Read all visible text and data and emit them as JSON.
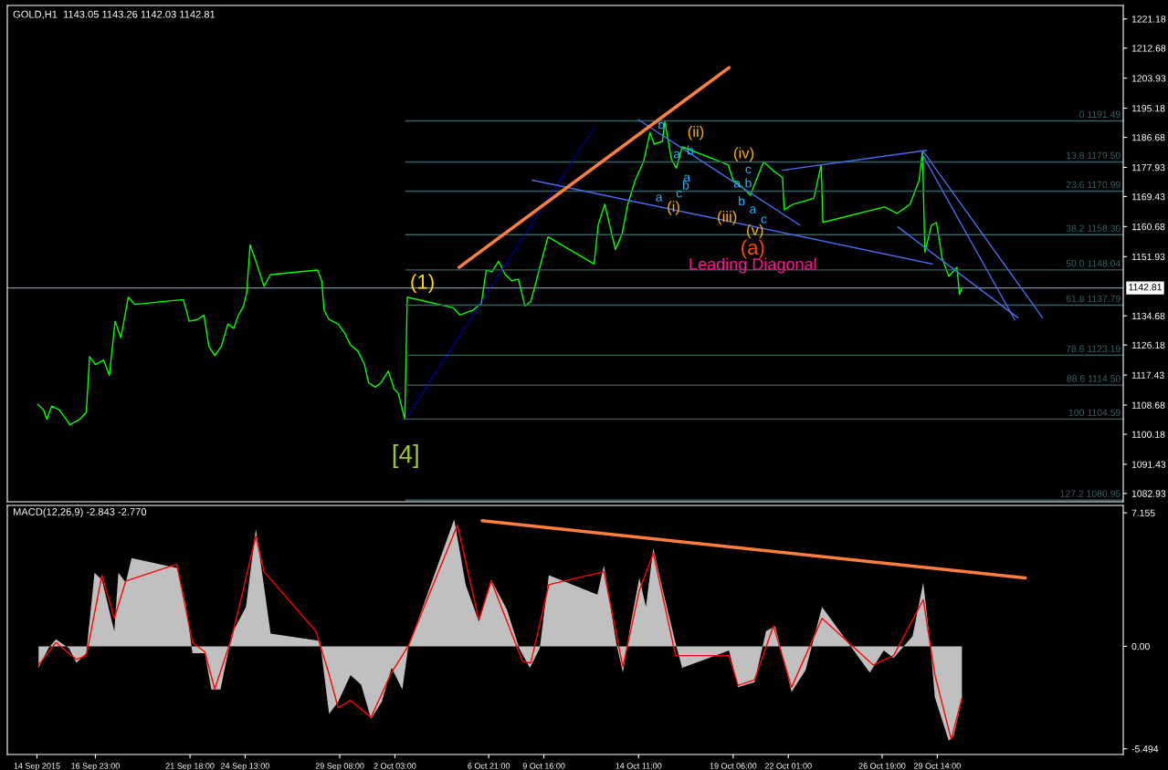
{
  "chart_data": [
    {
      "type": "line",
      "title": "GOLD,H1  1143.05 1143.26 1142.03 1142.81",
      "xlim": [
        "2015-09-12T12:00",
        "2015-11-08T00:00"
      ],
      "ylim": [
        1080.5,
        1225.1
      ],
      "tick_labels": "y",
      "grid": false,
      "legend": false,
      "yticks": [
        1082.93,
        1091.43,
        1100.18,
        1108.68,
        1117.43,
        1126.18,
        1134.68,
        1151.93,
        1160.68,
        1169.43,
        1177.93,
        1186.68,
        1195.18,
        1203.93,
        1212.68,
        1221.18
      ],
      "ref_lines": [
        {
          "axis": "y",
          "value": 1142.81,
          "label": "1142.81",
          "color": "#7f8fa6"
        }
      ],
      "series": [
        {
          "color": "#00ff00",
          "x": [
            "2015-09-14T01:00",
            "2015-09-14T08:00",
            "2015-09-14T12:00",
            "2015-09-14T18:00",
            "2015-09-15T03:00",
            "2015-09-15T11:00",
            "2015-09-15T16:00",
            "2015-09-16T04:00",
            "2015-09-16T12:00",
            "2015-09-16T16:00",
            "2015-09-16T23:00",
            "2015-09-17T09:00",
            "2015-09-17T16:00",
            "2015-09-17T23:00",
            "2015-09-18T06:00",
            "2015-09-18T15:00",
            "2015-09-18T23:00",
            "2015-09-21T10:00",
            "2015-09-21T17:00",
            "2015-09-22T03:00",
            "2015-09-22T11:00",
            "2015-09-22T17:00",
            "2015-09-23T00:00",
            "2015-09-23T08:00",
            "2015-09-23T16:00",
            "2015-09-23T23:00",
            "2015-09-24T05:00",
            "2015-09-24T11:00",
            "2015-09-24T15:00",
            "2015-09-24T19:00",
            "2015-09-25T02:00",
            "2015-09-25T12:00",
            "2015-09-25T20:00",
            "2015-09-28T05:00",
            "2015-09-28T10:00",
            "2015-09-28T13:00",
            "2015-09-28T19:00",
            "2015-09-29T06:00",
            "2015-09-29T14:00",
            "2015-09-29T21:00",
            "2015-09-30T06:00",
            "2015-09-30T14:00",
            "2015-09-30T19:00",
            "2015-10-01T03:00",
            "2015-10-01T10:00",
            "2015-10-01T19:00",
            "2015-10-02T02:00",
            "2015-10-02T07:00",
            "2015-10-02T15:00",
            "2015-10-02T18:00",
            "2015-10-05T02:00",
            "2015-10-05T10:00",
            "2015-10-05T18:00",
            "2015-10-06T01:00",
            "2015-10-06T12:00",
            "2015-10-06T18:00",
            "2015-10-07T01:00",
            "2015-10-07T09:00",
            "2015-10-07T17:00",
            "2015-10-08T01:00",
            "2015-10-08T09:00",
            "2015-10-08T17:00",
            "2015-10-09T00:00",
            "2015-10-09T06:00",
            "2015-10-09T13:00",
            "2015-10-09T19:00",
            "2015-10-09T21:00",
            "2015-10-12T05:00",
            "2015-10-12T10:00",
            "2015-10-12T18:00",
            "2015-10-13T07:00",
            "2015-10-13T15:00",
            "2015-10-13T22:00",
            "2015-10-14T07:00",
            "2015-10-14T17:00",
            "2015-10-15T01:00",
            "2015-10-15T06:00",
            "2015-10-15T16:00",
            "2015-10-15T19:00",
            "2015-10-16T03:00",
            "2015-10-16T09:00",
            "2015-10-16T16:00",
            "2015-10-19T00:00",
            "2015-10-19T06:00",
            "2015-10-19T16:00",
            "2015-10-20T03:00",
            "2015-10-20T10:00",
            "2015-10-20T19:00",
            "2015-10-21T07:00",
            "2015-10-21T18:00",
            "2015-10-21T20:00",
            "2015-10-22T07:00",
            "2015-10-22T22:00",
            "2015-10-23T08:00",
            "2015-10-23T17:00",
            "2015-10-23T19:00",
            "2015-10-26T08:00",
            "2015-10-26T22:00",
            "2015-10-27T13:00",
            "2015-10-28T05:00",
            "2015-10-28T16:00",
            "2015-10-28T20:00",
            "2015-10-28T23:00",
            "2015-10-29T07:00",
            "2015-10-29T13:00",
            "2015-10-29T20:00",
            "2015-10-30T04:00",
            "2015-10-30T14:00",
            "2015-10-30T17:00",
            "2015-10-30T20:00"
          ],
          "values": [
            1108.9,
            1107.3,
            1104.5,
            1108.4,
            1107.3,
            1104.7,
            1102.9,
            1104.5,
            1106.6,
            1122.8,
            1120.5,
            1121.8,
            1117.3,
            1133.1,
            1128.3,
            1140.1,
            1138.0,
            1139.4,
            1133.1,
            1133.6,
            1134.9,
            1125.7,
            1123.1,
            1125.7,
            1132.3,
            1131.0,
            1134.9,
            1137.5,
            1141.5,
            1155.4,
            1150.6,
            1143.3,
            1146.7,
            1148.0,
            1144.9,
            1136.2,
            1133.6,
            1132.3,
            1129.6,
            1126.2,
            1124.4,
            1120.5,
            1115.2,
            1113.9,
            1115.2,
            1118.6,
            1113.4,
            1112.1,
            1104.6,
            1140.1,
            1137.0,
            1134.9,
            1135.7,
            1136.2,
            1138.3,
            1148.0,
            1147.5,
            1150.6,
            1146.7,
            1144.9,
            1145.4,
            1137.5,
            1138.8,
            1144.1,
            1150.6,
            1155.9,
            1157.7,
            1149.8,
            1161.1,
            1167.2,
            1154.0,
            1158.5,
            1167.2,
            1174.2,
            1179.5,
            1188.1,
            1184.7,
            1185.5,
            1191.3,
            1180.3,
            1177.7,
            1183.9,
            1178.7,
            1174.2,
            1172.4,
            1169.8,
            1174.2,
            1179.5,
            1176.9,
            1175.0,
            1165.6,
            1167.2,
            1168.2,
            1169.0,
            1178.7,
            1161.9,
            1165.6,
            1166.4,
            1164.5,
            1167.2,
            1174.2,
            1182.6,
            1153.3,
            1161.1,
            1161.9,
            1151.4,
            1146.2,
            1148.8,
            1140.9,
            1142.8
          ]
        },
        {
          "name": "0 1191.49",
          "color": "#3a5f5f",
          "x": [
            "2015-10-02T16:00",
            "2015-11-08T00:00"
          ],
          "values": [
            1191.49,
            1191.49
          ]
        },
        {
          "name": "13.8 1179.50",
          "color": "#3a5f5f",
          "x": [
            "2015-10-02T16:00",
            "2015-11-08T00:00"
          ],
          "values": [
            1179.5,
            1179.5
          ]
        },
        {
          "name": "23.6 1170.99",
          "color": "#3a5f5f",
          "x": [
            "2015-10-02T16:00",
            "2015-11-08T00:00"
          ],
          "values": [
            1170.99,
            1170.99
          ]
        },
        {
          "name": "38.2 1158.30",
          "color": "#3a5f5f",
          "x": [
            "2015-10-02T16:00",
            "2015-11-08T00:00"
          ],
          "values": [
            1158.3,
            1158.3
          ]
        },
        {
          "name": "50.0 1148.04",
          "color": "#3a5f5f",
          "x": [
            "2015-10-02T16:00",
            "2015-11-08T00:00"
          ],
          "values": [
            1148.04,
            1148.04
          ]
        },
        {
          "name": "61.8 1137.79",
          "color": "#3a5f5f",
          "x": [
            "2015-10-02T16:00",
            "2015-11-08T00:00"
          ],
          "values": [
            1137.79,
            1137.79
          ]
        },
        {
          "name": "78.6 1123.19",
          "color": "#3a5f5f",
          "x": [
            "2015-10-02T16:00",
            "2015-11-08T00:00"
          ],
          "values": [
            1123.19,
            1123.19
          ]
        },
        {
          "name": "88.6 1114.50",
          "color": "#3a5f5f",
          "x": [
            "2015-10-02T16:00",
            "2015-11-08T00:00"
          ],
          "values": [
            1114.5,
            1114.5
          ]
        },
        {
          "name": "100 1104.59",
          "color": "#3a5f5f",
          "x": [
            "2015-10-02T16:00",
            "2015-11-08T00:00"
          ],
          "values": [
            1104.59,
            1104.59
          ]
        },
        {
          "name": "127.2 1080.95",
          "color": "#3a5f5f",
          "x": [
            "2015-10-02T16:00",
            "2015-11-08T00:00"
          ],
          "values": [
            1080.95,
            1080.95
          ]
        },
        {
          "color": "#0000ff",
          "line_style": "dotted",
          "x": [
            "2015-10-02T16:00",
            "2015-10-12T06:00"
          ],
          "values": [
            1104.6,
            1189.9
          ]
        },
        {
          "color": "#4a6cf0",
          "x": [
            "2015-10-09T02:00",
            "2015-10-29T08:00"
          ],
          "values": [
            1174.2,
            1149.8
          ]
        },
        {
          "color": "#4a6cf0",
          "x": [
            "2015-10-14T11:00",
            "2015-10-22T15:00"
          ],
          "values": [
            1191.8,
            1161.1
          ]
        },
        {
          "color": "#4a6cf0",
          "x": [
            "2015-10-21T18:00",
            "2015-10-29T01:00"
          ],
          "values": [
            1177.1,
            1182.9
          ]
        },
        {
          "color": "#4a6cf0",
          "x": [
            "2015-10-27T14:00",
            "2015-11-02T16:00"
          ],
          "values": [
            1160.6,
            1134.1
          ]
        },
        {
          "color": "#4a6cf0",
          "x": [
            "2015-10-28T20:00",
            "2015-11-02T12:00"
          ],
          "values": [
            1181.6,
            1133.6
          ]
        },
        {
          "color": "#4a6cf0",
          "x": [
            "2015-10-28T21:00",
            "2015-11-03T22:00"
          ],
          "values": [
            1182.6,
            1134.1
          ]
        },
        {
          "color": "#ff7f3f",
          "x": [
            "2015-10-05T09:00",
            "2015-10-19T01:00"
          ],
          "values": [
            1148.8,
            1207.0
          ]
        }
      ],
      "annotations": [
        "(1)",
        "[4]",
        "Leading Diagonal",
        "(a)",
        "(v)",
        "(iii)",
        "(i)",
        "(ii)",
        "(iv)",
        "b",
        "a",
        "b",
        "c",
        "a",
        "b",
        "c",
        "a",
        "a",
        "b",
        "b",
        "a",
        "c"
      ]
    },
    {
      "type": "area",
      "title": "MACD(12,26,9) -2.843 -2.770",
      "xlim": [
        "2015-09-12T12:00",
        "2015-11-08T00:00"
      ],
      "ylim": [
        -5.8,
        7.55
      ],
      "grid": false,
      "legend": false,
      "xticks": [
        {
          "value": "2015-09-14T00:00",
          "label": "14 Sep 2015"
        },
        {
          "value": "2015-09-16T23:00",
          "label": "16 Sep 23:00"
        },
        {
          "value": "2015-09-21T18:00",
          "label": "21 Sep 18:00"
        },
        {
          "value": "2015-09-24T13:00",
          "label": "24 Sep 13:00"
        },
        {
          "value": "2015-09-29T08:00",
          "label": "29 Sep 08:00"
        },
        {
          "value": "2015-10-02T03:00",
          "label": "2 Oct 03:00"
        },
        {
          "value": "2015-10-06T21:00",
          "label": "6 Oct 21:00"
        },
        {
          "value": "2015-10-09T16:00",
          "label": "9 Oct 16:00"
        },
        {
          "value": "2015-10-14T11:00",
          "label": "14 Oct 11:00"
        },
        {
          "value": "2015-10-19T06:00",
          "label": "19 Oct 06:00"
        },
        {
          "value": "2015-10-22T01:00",
          "label": "22 Oct 01:00"
        },
        {
          "value": "2015-10-26T19:00",
          "label": "26 Oct 19:00"
        },
        {
          "value": "2015-10-29T14:00",
          "label": "29 Oct 14:00"
        }
      ],
      "yticks": [
        -5.494,
        {
          "value": 0,
          "label": "0.00"
        },
        7.155
      ],
      "series": [
        {
          "color": "#c0c0c0",
          "x": [
            "2015-09-14T02:00",
            "2015-09-14T14:00",
            "2015-09-14T23:00",
            "2015-09-15T15:00",
            "2015-09-16T00:00",
            "2015-09-16T12:00",
            "2015-09-16T22:00",
            "2015-09-17T07:00",
            "2015-09-17T22:00",
            "2015-09-18T03:00",
            "2015-09-18T12:00",
            "2015-09-18T19:00",
            "2015-09-21T02:00",
            "2015-09-21T13:00",
            "2015-09-21T21:00",
            "2015-09-22T12:00",
            "2015-09-22T20:00",
            "2015-09-23T07:00",
            "2015-09-23T21:00",
            "2015-09-24T14:00",
            "2015-09-25T02:00",
            "2015-09-25T10:00",
            "2015-09-25T20:00",
            "2015-09-28T08:00",
            "2015-09-28T19:00",
            "2015-09-29T06:00",
            "2015-09-29T21:00",
            "2015-09-30T10:00",
            "2015-09-30T22:00",
            "2015-10-01T11:00",
            "2015-10-01T23:00",
            "2015-10-02T12:00",
            "2015-10-02T19:00",
            "2015-10-05T03:00",
            "2015-10-05T17:00",
            "2015-10-06T09:00",
            "2015-10-07T00:00",
            "2015-10-07T19:00",
            "2015-10-08T10:00",
            "2015-10-08T23:00",
            "2015-10-09T11:00",
            "2015-10-09T22:00",
            "2015-10-12T09:00",
            "2015-10-12T17:00",
            "2015-10-13T08:00",
            "2015-10-13T16:00",
            "2015-10-14T01:00",
            "2015-10-14T12:00",
            "2015-10-14T20:00",
            "2015-10-15T05:00",
            "2015-10-15T15:00",
            "2015-10-16T08:00",
            "2015-10-16T16:00",
            "2015-10-19T01:00",
            "2015-10-19T12:00",
            "2015-10-20T08:00",
            "2015-10-20T22:00",
            "2015-10-21T09:00",
            "2015-10-22T05:00",
            "2015-10-22T22:00",
            "2015-10-23T18:00",
            "2015-10-26T04:00",
            "2015-10-26T21:00",
            "2015-10-27T09:00",
            "2015-10-28T08:00",
            "2015-10-28T21:00",
            "2015-10-29T06:00",
            "2015-10-29T11:00",
            "2015-10-30T04:00",
            "2015-10-30T10:00",
            "2015-10-30T20:00"
          ],
          "values": [
            -1.15,
            -0.1,
            0.37,
            -0.1,
            -0.89,
            -0.37,
            3.94,
            3.55,
            0.8,
            3.94,
            3.42,
            4.73,
            4.2,
            2.25,
            -0.37,
            -0.37,
            -2.32,
            -2.32,
            0.68,
            2.11,
            6.29,
            3.81,
            0.68,
            0.29,
            -3.63,
            -2.98,
            -1.54,
            -2.06,
            -3.89,
            -2.98,
            -1.15,
            -2.32,
            -0.1,
            6.81,
            3.29,
            1.33,
            3.55,
            1.98,
            -0.1,
            -1.15,
            -0.1,
            3.81,
            2.77,
            4.33,
            0.16,
            -1.41,
            1.07,
            3.68,
            2.11,
            5.25,
            3.29,
            0.16,
            -1.15,
            -0.23,
            -2.19,
            -1.93,
            0.81,
            1.07,
            -2.45,
            -1.28,
            2.11,
            -1.41,
            -0.23,
            -0.63,
            0.55,
            3.42,
            -0.1,
            -2.72,
            -5.07,
            -4.8,
            -2.843
          ]
        },
        {
          "type": "line",
          "color": "#ff0000",
          "x": [
            "2015-09-14T02:00",
            "2015-09-14T23:00",
            "2015-09-16T00:00",
            "2015-09-16T12:00",
            "2015-09-17T07:00",
            "2015-09-17T22:00",
            "2015-09-18T12:00",
            "2015-09-21T02:00",
            "2015-09-21T21:00",
            "2015-09-22T12:00",
            "2015-09-23T00:00",
            "2015-09-23T21:00",
            "2015-09-25T02:00",
            "2015-09-25T12:00",
            "2015-09-28T03:00",
            "2015-09-28T19:00",
            "2015-09-29T06:00",
            "2015-09-29T21:00",
            "2015-09-30T22:00",
            "2015-10-01T23:00",
            "2015-10-02T19:00",
            "2015-10-05T07:00",
            "2015-10-06T09:00",
            "2015-10-07T00:00",
            "2015-10-08T14:00",
            "2015-10-09T00:00",
            "2015-10-09T22:00",
            "2015-10-12T17:00",
            "2015-10-13T16:00",
            "2015-10-14T12:00",
            "2015-10-15T05:00",
            "2015-10-16T08:00",
            "2015-10-19T01:00",
            "2015-10-19T12:00",
            "2015-10-20T08:00",
            "2015-10-21T07:00",
            "2015-10-22T05:00",
            "2015-10-23T18:00",
            "2015-10-26T08:00",
            "2015-10-27T09:00",
            "2015-10-28T21:00",
            "2015-10-29T11:00",
            "2015-10-30T07:00",
            "2015-10-30T20:00"
          ],
          "values": [
            -1.0,
            0.2,
            -0.7,
            -0.5,
            3.8,
            1.5,
            3.5,
            4.4,
            0.2,
            -0.3,
            -2.3,
            0.5,
            5.9,
            4.0,
            0.8,
            -1.5,
            -3.3,
            -2.9,
            -3.8,
            -1.4,
            0.0,
            6.5,
            1.4,
            3.5,
            -0.8,
            -0.9,
            3.3,
            4.0,
            -1.1,
            3.0,
            5.0,
            -0.5,
            -0.5,
            -2.1,
            -1.8,
            1.1,
            -2.2,
            1.5,
            -1.0,
            -0.5,
            2.5,
            -1.5,
            -5.0,
            -2.77
          ]
        },
        {
          "type": "line",
          "color": "#ff7f3f",
          "x": [
            "2015-10-06T13:00",
            "2015-11-03T01:00"
          ],
          "values": [
            6.73,
            3.66
          ]
        }
      ]
    }
  ]
}
